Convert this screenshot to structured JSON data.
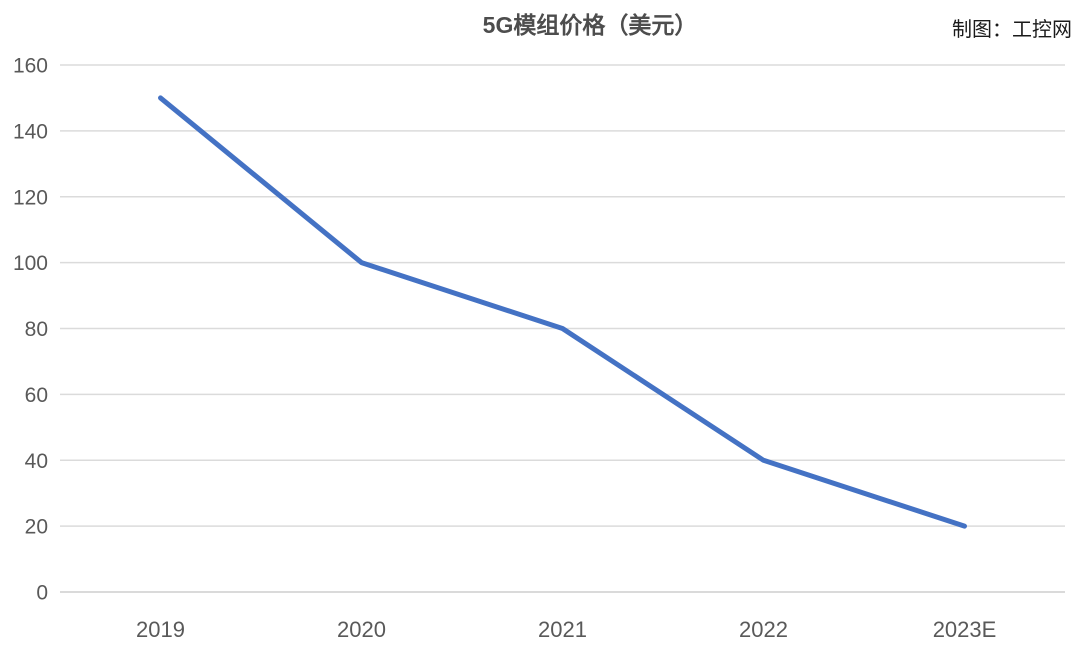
{
  "chart_data": {
    "type": "line",
    "title": "5G模组价格（美元）",
    "credit": "制图：工控网",
    "categories": [
      "2019",
      "2020",
      "2021",
      "2022",
      "2023E"
    ],
    "values": [
      150,
      100,
      80,
      40,
      20
    ],
    "xlabel": "",
    "ylabel": "",
    "ylim": [
      0,
      160
    ],
    "ytick_step": 20,
    "grid": true,
    "legend_position": "none",
    "markers": false,
    "colors": {
      "line": "#4472C4",
      "gridline": "#DBDBDB",
      "axis_line": "#CDCDCD",
      "tick_label": "#595959",
      "title": "#4d4d4d",
      "credit": "#1a1a1a",
      "background": "#FFFFFF"
    }
  }
}
